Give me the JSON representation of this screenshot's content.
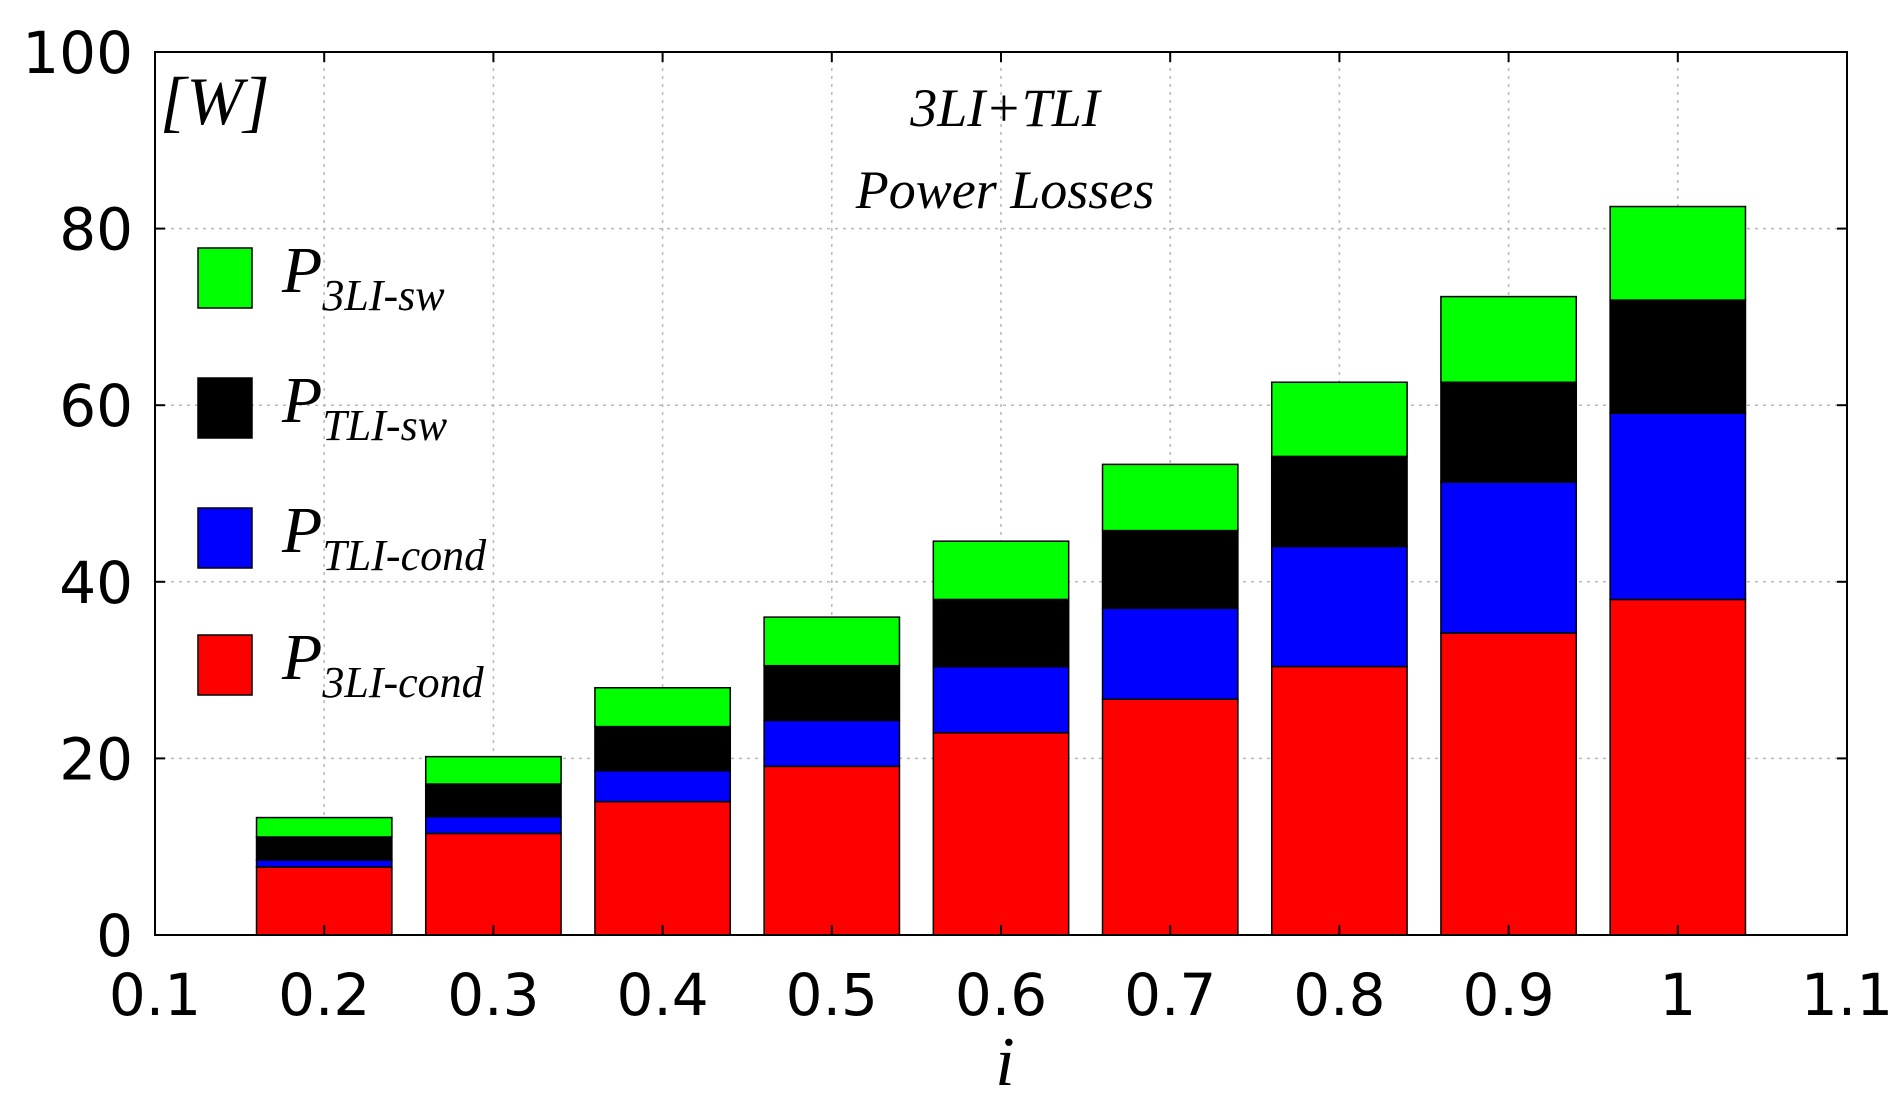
{
  "chart_data": {
    "type": "bar",
    "stacked": true,
    "title_line1": "3LI+TLI",
    "title_line2": "Power Losses",
    "unit_label": "[W]",
    "xlabel": "i",
    "ylabel": "",
    "xlim": [
      0.1,
      1.1
    ],
    "ylim": [
      0,
      100
    ],
    "x_ticks": [
      "0.1",
      "0.2",
      "0.3",
      "0.4",
      "0.5",
      "0.6",
      "0.7",
      "0.8",
      "0.9",
      "1",
      "1.1"
    ],
    "y_ticks": [
      "0",
      "20",
      "40",
      "60",
      "80",
      "100"
    ],
    "x": [
      0.2,
      0.3,
      0.4,
      0.5,
      0.6,
      0.7,
      0.8,
      0.9,
      1.0
    ],
    "grid": true,
    "legend_position": "left",
    "series": [
      {
        "name": "P3LI-cond",
        "base": "P",
        "sub": "3LI-cond",
        "color": "#ff0000",
        "values": [
          7.7,
          11.5,
          15.1,
          19.1,
          22.9,
          26.7,
          30.4,
          34.2,
          38.0
        ]
      },
      {
        "name": "PTLI-cond",
        "base": "P",
        "sub": "TLI-cond",
        "color": "#0000ff",
        "values": [
          0.8,
          1.9,
          3.5,
          5.2,
          7.5,
          10.3,
          13.6,
          17.1,
          21.1
        ]
      },
      {
        "name": "PTLI-sw",
        "base": "P",
        "sub": "TLI-sw",
        "color": "#000000",
        "values": [
          2.6,
          3.7,
          5.0,
          6.2,
          7.6,
          8.8,
          10.2,
          11.3,
          12.8
        ]
      },
      {
        "name": "P3LI-sw",
        "base": "P",
        "sub": "3LI-sw",
        "color": "#00ff00",
        "values": [
          2.2,
          3.1,
          4.4,
          5.5,
          6.6,
          7.5,
          8.4,
          9.7,
          10.6
        ]
      }
    ],
    "legend_order": [
      "P3LI-sw",
      "PTLI-sw",
      "PTLI-cond",
      "P3LI-cond"
    ]
  }
}
